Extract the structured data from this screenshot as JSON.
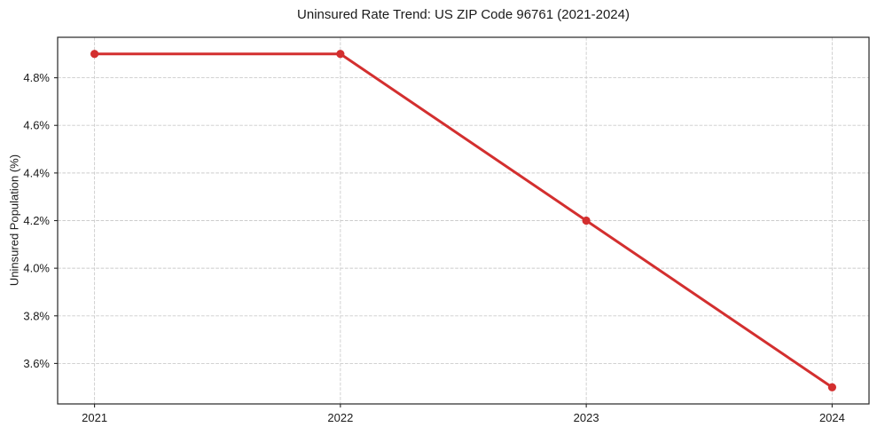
{
  "figure": {
    "background": "#ffffff",
    "text_color": "#1a1a1a"
  },
  "chart_data": {
    "type": "line",
    "title": "Uninsured Rate Trend: US ZIP Code 96761 (2021-2024)",
    "xlabel": "",
    "ylabel": "Uninsured Population (%)",
    "x": [
      2021,
      2022,
      2023,
      2024
    ],
    "x_tick_labels": [
      "2021",
      "2022",
      "2023",
      "2024"
    ],
    "series": [
      {
        "values": [
          4.9,
          4.9,
          4.2,
          3.5
        ],
        "color": "#d32f2f",
        "marker": "circle",
        "line_width": 3,
        "marker_radius": 4.6
      }
    ],
    "y_ticks": [
      3.6,
      3.8,
      4.0,
      4.2,
      4.4,
      4.6,
      4.8
    ],
    "y_tick_labels": [
      "3.6%",
      "3.8%",
      "4.0%",
      "4.2%",
      "4.4%",
      "4.6%",
      "4.8%"
    ],
    "xlim": [
      2020.85,
      2024.15
    ],
    "ylim": [
      3.43,
      4.97
    ],
    "grid": true,
    "grid_style": "dashed",
    "grid_color": "#cccccc",
    "spine_color": "#262626",
    "legend": "none"
  }
}
